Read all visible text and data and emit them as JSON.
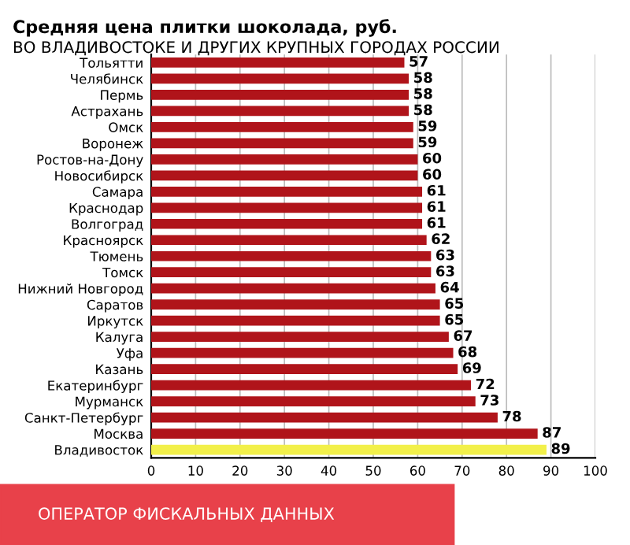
{
  "chart_data": {
    "type": "bar",
    "orientation": "horizontal",
    "title": "Средняя цена плитки шоколада, руб.",
    "subtitle": "ВО ВЛАДИВОСТОКЕ И ДРУГИХ КРУПНЫХ ГОРОДАХ РОССИИ",
    "categories": [
      "Тольятти",
      "Челябинск",
      "Пермь",
      "Астрахань",
      "Омск",
      "Воронеж",
      "Ростов-на-Дону",
      "Новосибирск",
      "Самара",
      "Краснодар",
      "Волгоград",
      "Красноярск",
      "Тюмень",
      "Томск",
      "Нижний Новгород",
      "Саратов",
      "Иркутск",
      "Калуга",
      "Уфа",
      "Казань",
      "Екатеринбург",
      "Мурманск",
      "Санкт-Петербург",
      "Москва",
      "Владивосток"
    ],
    "values": [
      57,
      58,
      58,
      58,
      59,
      59,
      60,
      60,
      61,
      61,
      61,
      62,
      63,
      63,
      64,
      65,
      65,
      67,
      68,
      69,
      72,
      73,
      78,
      87,
      89
    ],
    "colors": [
      "#b0141a",
      "#b0141a",
      "#b0141a",
      "#b0141a",
      "#b0141a",
      "#b0141a",
      "#b0141a",
      "#b0141a",
      "#b0141a",
      "#b0141a",
      "#b0141a",
      "#b0141a",
      "#b0141a",
      "#b0141a",
      "#b0141a",
      "#b0141a",
      "#b0141a",
      "#b0141a",
      "#b0141a",
      "#b0141a",
      "#b0141a",
      "#b0141a",
      "#b0141a",
      "#b0141a",
      "#f2f04a"
    ],
    "data_labels": true,
    "xlim": [
      0,
      100
    ],
    "xticks": [
      0,
      10,
      20,
      30,
      40,
      50,
      60,
      70,
      80,
      90,
      100
    ],
    "grid": "x",
    "annotations": [
      "ОПЕРАТОР ФИСКАЛЬНЫХ ДАННЫХ"
    ]
  }
}
